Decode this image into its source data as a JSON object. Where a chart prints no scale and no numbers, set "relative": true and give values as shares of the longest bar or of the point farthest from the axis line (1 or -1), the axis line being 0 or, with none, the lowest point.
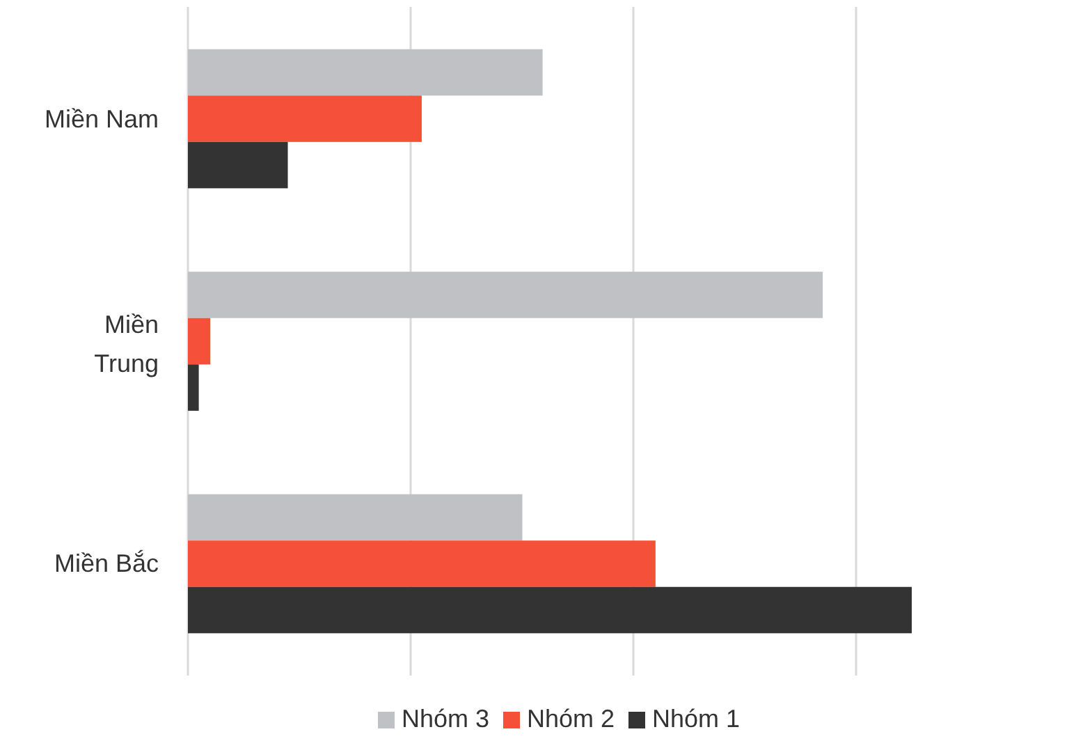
{
  "chart_data": {
    "type": "bar",
    "orientation": "horizontal",
    "relative": true,
    "grid": "x",
    "legend": "bottom",
    "categories": [
      "Miền Nam",
      "Miền Trung",
      "Miền Bắc"
    ],
    "series": [
      {
        "name": "Nhóm 3",
        "color": "#bfc1c4",
        "values": [
          0.49,
          0.877,
          0.462
        ]
      },
      {
        "name": "Nhóm 2",
        "color": "#f5503a",
        "values": [
          0.323,
          0.031,
          0.646
        ]
      },
      {
        "name": "Nhóm 1",
        "color": "#333333",
        "values": [
          0.138,
          0.015,
          1
        ]
      }
    ]
  }
}
